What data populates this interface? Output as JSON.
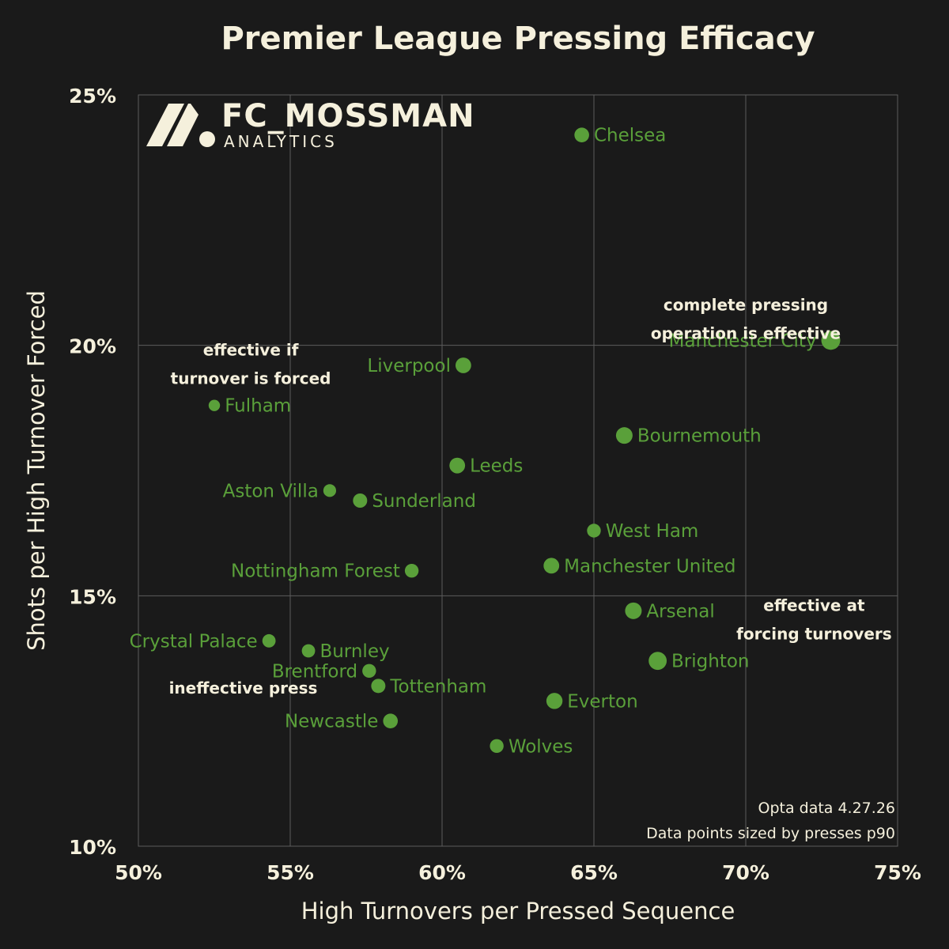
{
  "chart_data": {
    "type": "scatter",
    "title": "Premier League Pressing Efficacy",
    "xlabel": "High Turnovers per Pressed Sequence",
    "ylabel": "Shots per High Turnover Forced",
    "xlim": [
      0.5,
      0.75
    ],
    "ylim": [
      0.1,
      0.25
    ],
    "xticks": [
      0.5,
      0.55,
      0.6,
      0.65,
      0.7,
      0.75
    ],
    "xtick_labels": [
      "50%",
      "55%",
      "60%",
      "65%",
      "70%",
      "75%"
    ],
    "yticks": [
      0.1,
      0.15,
      0.2,
      0.25
    ],
    "ytick_labels": [
      "10%",
      "15%",
      "20%",
      "25%"
    ],
    "grid": true,
    "size_encoding": "presses p90 (relative)",
    "points": [
      {
        "label": "Chelsea",
        "x": 0.646,
        "y": 0.242,
        "size": 0.55,
        "label_side": "right"
      },
      {
        "label": "Manchester City",
        "x": 0.728,
        "y": 0.201,
        "size": 1.0,
        "label_side": "left"
      },
      {
        "label": "Liverpool",
        "x": 0.607,
        "y": 0.196,
        "size": 0.65,
        "label_side": "left"
      },
      {
        "label": "Fulham",
        "x": 0.525,
        "y": 0.188,
        "size": 0.2,
        "label_side": "right"
      },
      {
        "label": "Bournemouth",
        "x": 0.66,
        "y": 0.182,
        "size": 0.75,
        "label_side": "right"
      },
      {
        "label": "Leeds",
        "x": 0.605,
        "y": 0.176,
        "size": 0.65,
        "label_side": "right"
      },
      {
        "label": "Aston Villa",
        "x": 0.563,
        "y": 0.171,
        "size": 0.35,
        "label_side": "left"
      },
      {
        "label": "Sunderland",
        "x": 0.573,
        "y": 0.169,
        "size": 0.5,
        "label_side": "right"
      },
      {
        "label": "West Ham",
        "x": 0.65,
        "y": 0.163,
        "size": 0.45,
        "label_side": "right"
      },
      {
        "label": "Manchester United",
        "x": 0.636,
        "y": 0.156,
        "size": 0.65,
        "label_side": "right"
      },
      {
        "label": "Nottingham Forest",
        "x": 0.59,
        "y": 0.155,
        "size": 0.45,
        "label_side": "left"
      },
      {
        "label": "Arsenal",
        "x": 0.663,
        "y": 0.147,
        "size": 0.75,
        "label_side": "right"
      },
      {
        "label": "Crystal Palace",
        "x": 0.543,
        "y": 0.141,
        "size": 0.4,
        "label_side": "left"
      },
      {
        "label": "Burnley",
        "x": 0.556,
        "y": 0.139,
        "size": 0.4,
        "label_side": "right"
      },
      {
        "label": "Brighton",
        "x": 0.671,
        "y": 0.137,
        "size": 0.9,
        "label_side": "right"
      },
      {
        "label": "Brentford",
        "x": 0.576,
        "y": 0.135,
        "size": 0.45,
        "label_side": "left"
      },
      {
        "label": "Tottenham",
        "x": 0.579,
        "y": 0.132,
        "size": 0.5,
        "label_side": "right"
      },
      {
        "label": "Everton",
        "x": 0.637,
        "y": 0.129,
        "size": 0.7,
        "label_side": "right"
      },
      {
        "label": "Newcastle",
        "x": 0.583,
        "y": 0.125,
        "size": 0.55,
        "label_side": "left"
      },
      {
        "label": "Wolves",
        "x": 0.618,
        "y": 0.12,
        "size": 0.45,
        "label_side": "right"
      }
    ],
    "annotations": [
      {
        "lines": [
          "complete pressing",
          "operation is effective"
        ],
        "x": 0.7,
        "y": 0.207
      },
      {
        "lines": [
          "effective if",
          "turnover is forced"
        ],
        "x": 0.537,
        "y": 0.198
      },
      {
        "lines": [
          "effective at",
          "forcing turnovers"
        ],
        "x": 0.7225,
        "y": 0.147
      },
      {
        "lines": [
          "ineffective press"
        ],
        "x": 0.5345,
        "y": 0.1305
      }
    ],
    "source_lines": [
      "Opta data 4.27.26",
      "Data points sized by presses p90"
    ]
  },
  "logo": {
    "name": "FC_MOSSMAN",
    "sub": "ANALYTICS"
  },
  "colors": {
    "background": "#1a1a1a",
    "point": "#5aa03a",
    "text": "#f5f0dc",
    "grid": "#5c5c5c"
  }
}
